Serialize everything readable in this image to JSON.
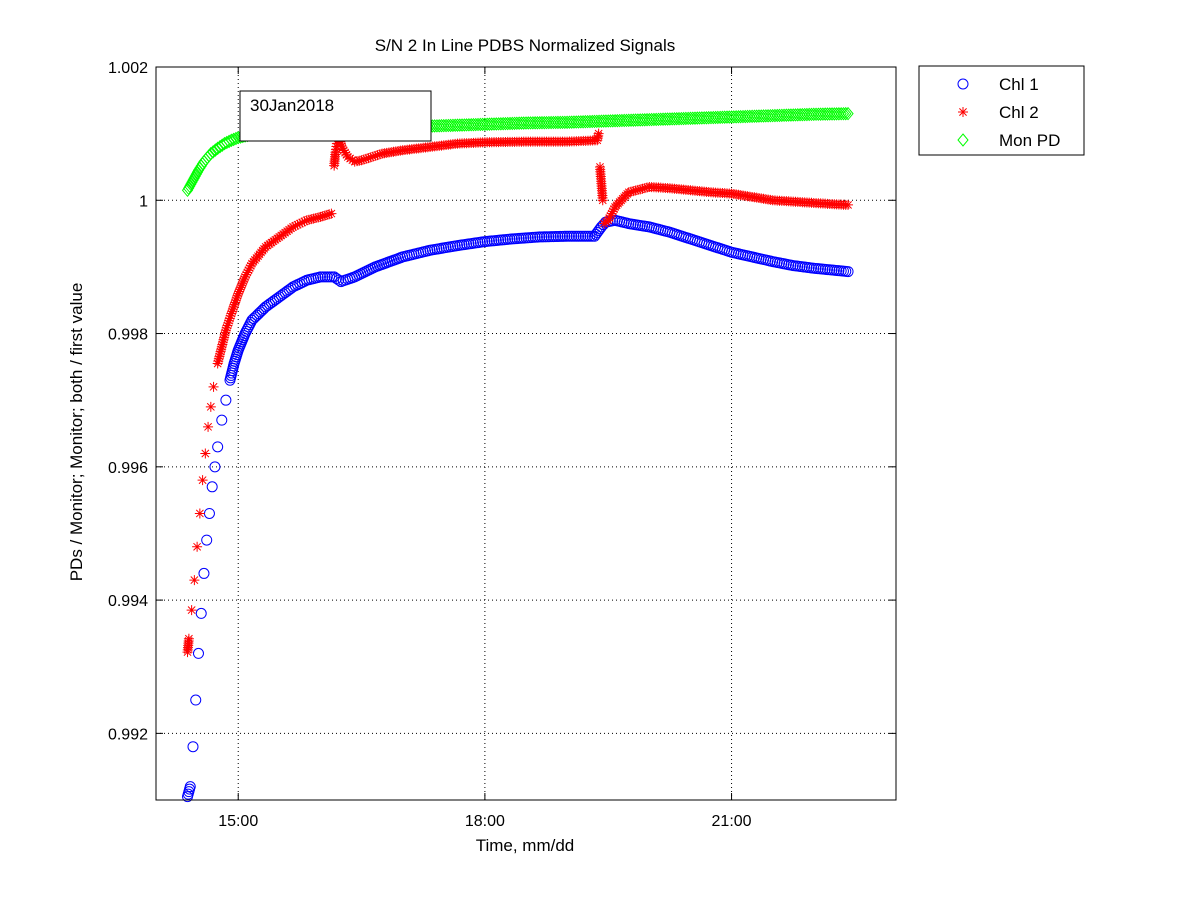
{
  "chart_data": {
    "type": "scatter",
    "title": "S/N 2 In Line PDBS Normalized Signals",
    "xlabel": "Time, mm/dd",
    "ylabel": "PDs / Monitor; Monitor; both / first value",
    "xlim": [
      "14:00",
      "23:00"
    ],
    "ylim": [
      0.991,
      1.002
    ],
    "x_ticks": [
      "15:00",
      "18:00",
      "21:00"
    ],
    "y_ticks": [
      "0.992",
      "0.994",
      "0.996",
      "0.998",
      "1",
      "1.002"
    ],
    "y_tick_values": [
      0.992,
      0.994,
      0.996,
      0.998,
      1.0,
      1.002
    ],
    "grid": true,
    "legend_position": "outside-top-right",
    "annotation": "30Jan2018",
    "series": [
      {
        "name": "Chl 1",
        "marker": "circle",
        "color": "#0000ff",
        "points": [
          [
            "14:23",
            0.99105
          ],
          [
            "14:25",
            0.9912
          ],
          [
            "14:27",
            0.9918
          ],
          [
            "14:29",
            0.9925
          ],
          [
            "14:31",
            0.9932
          ],
          [
            "14:33",
            0.9938
          ],
          [
            "14:35",
            0.9944
          ],
          [
            "14:37",
            0.9949
          ],
          [
            "14:39",
            0.9953
          ],
          [
            "14:41",
            0.9957
          ],
          [
            "14:43",
            0.996
          ],
          [
            "14:45",
            0.9963
          ],
          [
            "14:48",
            0.9967
          ],
          [
            "14:51",
            0.997
          ],
          [
            "14:54",
            0.9973
          ],
          [
            "14:57",
            0.99755
          ],
          [
            "15:00",
            0.99775
          ],
          [
            "15:05",
            0.998
          ],
          [
            "15:10",
            0.9982
          ],
          [
            "15:15",
            0.9983
          ],
          [
            "15:20",
            0.9984
          ],
          [
            "15:30",
            0.99855
          ],
          [
            "15:40",
            0.9987
          ],
          [
            "15:50",
            0.9988
          ],
          [
            "16:00",
            0.99885
          ],
          [
            "16:10",
            0.99885
          ],
          [
            "16:15",
            0.99878
          ],
          [
            "16:25",
            0.99885
          ],
          [
            "16:40",
            0.999
          ],
          [
            "17:00",
            0.99915
          ],
          [
            "17:20",
            0.99925
          ],
          [
            "17:40",
            0.99932
          ],
          [
            "18:00",
            0.99938
          ],
          [
            "18:20",
            0.99942
          ],
          [
            "18:40",
            0.99945
          ],
          [
            "19:00",
            0.99946
          ],
          [
            "19:20",
            0.99946
          ],
          [
            "19:25",
            0.9996
          ],
          [
            "19:28",
            0.99967
          ],
          [
            "19:35",
            0.9997
          ],
          [
            "19:45",
            0.99965
          ],
          [
            "20:00",
            0.9996
          ],
          [
            "20:15",
            0.99952
          ],
          [
            "20:30",
            0.99942
          ],
          [
            "20:45",
            0.99932
          ],
          [
            "21:00",
            0.99922
          ],
          [
            "21:15",
            0.99915
          ],
          [
            "21:30",
            0.99908
          ],
          [
            "21:45",
            0.99902
          ],
          [
            "22:00",
            0.99898
          ],
          [
            "22:15",
            0.99895
          ],
          [
            "22:25",
            0.99893
          ]
        ]
      },
      {
        "name": "Chl 2",
        "marker": "asterisk",
        "color": "#ff0000",
        "points": [
          [
            "14:23",
            0.99322
          ],
          [
            "14:24",
            0.99342
          ],
          [
            "14:26",
            0.99385
          ],
          [
            "14:28",
            0.9943
          ],
          [
            "14:30",
            0.9948
          ],
          [
            "14:32",
            0.9953
          ],
          [
            "14:34",
            0.9958
          ],
          [
            "14:36",
            0.9962
          ],
          [
            "14:38",
            0.9966
          ],
          [
            "14:40",
            0.9969
          ],
          [
            "14:42",
            0.9972
          ],
          [
            "14:45",
            0.99755
          ],
          [
            "14:48",
            0.9978
          ],
          [
            "14:51",
            0.99805
          ],
          [
            "14:55",
            0.9983
          ],
          [
            "15:00",
            0.9986
          ],
          [
            "15:05",
            0.99885
          ],
          [
            "15:10",
            0.99905
          ],
          [
            "15:20",
            0.9993
          ],
          [
            "15:30",
            0.99945
          ],
          [
            "15:40",
            0.9996
          ],
          [
            "15:50",
            0.9997
          ],
          [
            "16:00",
            0.99975
          ],
          [
            "16:08",
            0.9998
          ],
          [
            "16:10",
            1.00052
          ],
          [
            "16:11",
            1.00072
          ],
          [
            "16:12",
            1.00085
          ],
          [
            "16:13",
            1.00098
          ],
          [
            "16:16",
            1.00078
          ],
          [
            "16:20",
            1.00065
          ],
          [
            "16:25",
            1.00058
          ],
          [
            "16:30",
            1.0006
          ],
          [
            "16:45",
            1.0007
          ],
          [
            "17:00",
            1.00075
          ],
          [
            "17:20",
            1.0008
          ],
          [
            "17:40",
            1.00085
          ],
          [
            "18:00",
            1.00087
          ],
          [
            "18:30",
            1.00088
          ],
          [
            "19:00",
            1.00088
          ],
          [
            "19:22",
            1.0009
          ],
          [
            "19:23",
            1.001
          ],
          [
            "19:24",
            1.0005
          ],
          [
            "19:25",
            1.00025
          ],
          [
            "19:26",
            1.0
          ],
          [
            "19:27",
            0.99965
          ],
          [
            "19:30",
            0.9997
          ],
          [
            "19:35",
            0.9999
          ],
          [
            "19:45",
            1.00012
          ],
          [
            "20:00",
            1.0002
          ],
          [
            "20:15",
            1.00018
          ],
          [
            "20:30",
            1.00015
          ],
          [
            "20:45",
            1.00012
          ],
          [
            "21:00",
            1.0001
          ],
          [
            "21:15",
            1.00005
          ],
          [
            "21:30",
            1.0
          ],
          [
            "21:45",
            0.99998
          ],
          [
            "22:00",
            0.99996
          ],
          [
            "22:15",
            0.99994
          ],
          [
            "22:25",
            0.99993
          ]
        ]
      },
      {
        "name": "Mon PD",
        "marker": "diamond",
        "color": "#00ff00",
        "points": [
          [
            "14:23",
            1.00015
          ],
          [
            "14:27",
            1.0003
          ],
          [
            "14:31",
            1.00045
          ],
          [
            "14:35",
            1.00058
          ],
          [
            "14:40",
            1.0007
          ],
          [
            "14:45",
            1.00078
          ],
          [
            "14:50",
            1.00085
          ],
          [
            "14:55",
            1.0009
          ],
          [
            "15:00",
            1.00094
          ],
          [
            "15:10",
            1.00099
          ],
          [
            "15:20",
            1.00102
          ],
          [
            "15:30",
            1.00104
          ],
          [
            "15:45",
            1.00105
          ],
          [
            "16:00",
            1.00106
          ],
          [
            "16:30",
            1.00108
          ],
          [
            "17:00",
            1.0011
          ],
          [
            "17:30",
            1.00112
          ],
          [
            "18:00",
            1.00114
          ],
          [
            "18:30",
            1.00116
          ],
          [
            "19:00",
            1.00117
          ],
          [
            "19:30",
            1.00119
          ],
          [
            "20:00",
            1.00121
          ],
          [
            "20:30",
            1.00123
          ],
          [
            "21:00",
            1.00125
          ],
          [
            "21:30",
            1.00127
          ],
          [
            "22:00",
            1.00129
          ],
          [
            "22:25",
            1.0013
          ]
        ]
      }
    ]
  }
}
